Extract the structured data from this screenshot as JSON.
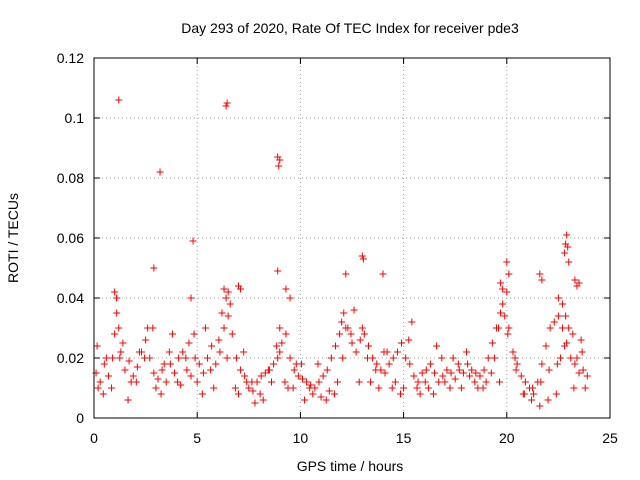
{
  "chart_data": {
    "type": "scatter",
    "title": "Day 293 of 2020, Rate Of TEC Index for receiver pde3",
    "xlabel": "GPS time / hours",
    "ylabel": "ROTI / TECUs",
    "xlim": [
      0,
      25
    ],
    "ylim": [
      0,
      0.12
    ],
    "xticks": [
      0,
      5,
      10,
      15,
      20,
      25
    ],
    "xtick_labels": [
      "0",
      "5",
      "10",
      "15",
      "20",
      "25"
    ],
    "yticks": [
      0,
      0.02,
      0.04,
      0.06,
      0.08,
      0.1,
      0.12
    ],
    "ytick_labels": [
      "0",
      "0.02",
      "0.04",
      "0.06",
      "0.08",
      "0.1",
      "0.12"
    ],
    "grid": true,
    "marker": "plus",
    "marker_color": "#ff0000",
    "series": [
      {
        "x": [
          0.1,
          0.3,
          0.5,
          0.7,
          0.9,
          1.0,
          1.1,
          1.2,
          1.3,
          1.5,
          1.7,
          1.9,
          2.1,
          2.3,
          2.5,
          2.7,
          2.9,
          3.1,
          3.3,
          3.5,
          3.7,
          3.9,
          4.1,
          4.3,
          4.5,
          4.7,
          4.9,
          5.1,
          5.3,
          5.5,
          5.7,
          5.9,
          6.1,
          6.3,
          6.5,
          6.7,
          6.9,
          7.1,
          7.3,
          7.5,
          7.7,
          7.9,
          8.1,
          8.3,
          8.5,
          8.7,
          8.9,
          9.0,
          9.1,
          9.3,
          9.5,
          9.7,
          9.9,
          10.1,
          10.3,
          10.5,
          10.7,
          10.9,
          11.1,
          11.3,
          11.5,
          11.7,
          11.9,
          12.0,
          12.1,
          12.3,
          12.5,
          12.7,
          12.9,
          13.1,
          13.3,
          13.5,
          13.7,
          13.9,
          14.1,
          14.3,
          14.5,
          14.7,
          14.9,
          15.1,
          15.3,
          15.5,
          15.7,
          15.9,
          16.1,
          16.3,
          16.5,
          16.7,
          16.9,
          17.1,
          17.3,
          17.5,
          17.7,
          17.9,
          18.1,
          18.3,
          18.5,
          18.7,
          18.9,
          19.1,
          19.3,
          19.5,
          19.7,
          19.8,
          19.9,
          20.1,
          20.3,
          20.5,
          20.7,
          20.9,
          21.1,
          21.3,
          21.5,
          21.7,
          21.9,
          22.1,
          22.3,
          22.5,
          22.7,
          22.9,
          23.1,
          23.3,
          23.5,
          23.7,
          23.9,
          0.2,
          0.6,
          1.1,
          1.4,
          1.8,
          2.2,
          2.6,
          3.0,
          3.4,
          3.8,
          4.2,
          4.6,
          5.0,
          5.4,
          5.8,
          6.2,
          6.4,
          6.6,
          7.0,
          7.4,
          7.8,
          8.2,
          8.6,
          9.0,
          9.4,
          9.8,
          10.2,
          10.6,
          11.0,
          11.4,
          11.8,
          12.2,
          12.6,
          13.0,
          13.4,
          13.8,
          14.2,
          14.6,
          15.0,
          15.4,
          15.8,
          16.2,
          16.6,
          17.0,
          17.4,
          17.8,
          18.2,
          18.6,
          19.0,
          19.4,
          19.6,
          20.0,
          20.4,
          20.8,
          21.2,
          21.6,
          22.0,
          22.4,
          22.6,
          22.8,
          23.0,
          23.2,
          23.4,
          23.6,
          23.8,
          0.15,
          0.45,
          0.85,
          1.25,
          1.65,
          2.05,
          2.45,
          2.85,
          3.25,
          3.65,
          4.05,
          4.45,
          4.85,
          5.25,
          5.65,
          6.05,
          6.45,
          6.85,
          7.25,
          7.65,
          8.05,
          8.45,
          8.85,
          9.25,
          9.65,
          10.05,
          10.45,
          10.85,
          11.25,
          11.65,
          12.05,
          12.45,
          12.85,
          13.25,
          13.65,
          14.05,
          14.45,
          14.85,
          15.25,
          15.65,
          16.05,
          16.45,
          16.85,
          17.25,
          17.65,
          18.05,
          18.45,
          18.85,
          19.25,
          19.65,
          20.05,
          20.45,
          20.85,
          21.25,
          21.65,
          22.05,
          22.45,
          22.85,
          23.25,
          23.65,
          1.2,
          3.2,
          2.9,
          4.8,
          4.7,
          6.4,
          6.45,
          8.9,
          8.95,
          9.0,
          13.0,
          13.05,
          14.0,
          20.0,
          21.6,
          21.7,
          22.8,
          22.85,
          22.9,
          22.95,
          23.0,
          23.3,
          23.5,
          8.9,
          9.3,
          9.5,
          12.2,
          1.0,
          1.1,
          6.3,
          6.5,
          7.0,
          7.1,
          19.7,
          19.8,
          20.1,
          23.4,
          22.5,
          22.7
        ],
        "y": [
          0.015,
          0.012,
          0.018,
          0.014,
          0.02,
          0.028,
          0.035,
          0.03,
          0.022,
          0.016,
          0.019,
          0.014,
          0.017,
          0.022,
          0.026,
          0.02,
          0.015,
          0.013,
          0.016,
          0.012,
          0.018,
          0.015,
          0.02,
          0.022,
          0.016,
          0.014,
          0.02,
          0.018,
          0.015,
          0.02,
          0.024,
          0.018,
          0.022,
          0.03,
          0.034,
          0.028,
          0.02,
          0.016,
          0.014,
          0.01,
          0.009,
          0.012,
          0.014,
          0.015,
          0.016,
          0.018,
          0.02,
          0.022,
          0.025,
          0.028,
          0.02,
          0.016,
          0.014,
          0.013,
          0.012,
          0.011,
          0.01,
          0.012,
          0.014,
          0.016,
          0.02,
          0.024,
          0.028,
          0.032,
          0.035,
          0.03,
          0.025,
          0.022,
          0.026,
          0.028,
          0.024,
          0.02,
          0.018,
          0.016,
          0.015,
          0.018,
          0.02,
          0.022,
          0.025,
          0.02,
          0.018,
          0.014,
          0.012,
          0.015,
          0.016,
          0.018,
          0.015,
          0.012,
          0.014,
          0.016,
          0.015,
          0.013,
          0.016,
          0.015,
          0.018,
          0.016,
          0.015,
          0.014,
          0.016,
          0.02,
          0.025,
          0.03,
          0.035,
          0.038,
          0.034,
          0.03,
          0.022,
          0.018,
          0.014,
          0.012,
          0.01,
          0.008,
          0.012,
          0.018,
          0.024,
          0.03,
          0.032,
          0.034,
          0.03,
          0.025,
          0.02,
          0.018,
          0.015,
          0.016,
          0.014,
          0.01,
          0.02,
          0.04,
          0.025,
          0.012,
          0.022,
          0.03,
          0.01,
          0.018,
          0.028,
          0.011,
          0.025,
          0.012,
          0.03,
          0.01,
          0.035,
          0.04,
          0.038,
          0.008,
          0.012,
          0.005,
          0.006,
          0.012,
          0.03,
          0.01,
          0.018,
          0.006,
          0.008,
          0.007,
          0.009,
          0.012,
          0.03,
          0.036,
          0.03,
          0.012,
          0.01,
          0.022,
          0.012,
          0.01,
          0.032,
          0.008,
          0.01,
          0.024,
          0.012,
          0.02,
          0.01,
          0.014,
          0.01,
          0.012,
          0.02,
          0.03,
          0.042,
          0.02,
          0.008,
          0.006,
          0.004,
          0.006,
          0.008,
          0.02,
          0.024,
          0.03,
          0.028,
          0.02,
          0.026,
          0.01,
          0.024,
          0.008,
          0.01,
          0.02,
          0.006,
          0.012,
          0.02,
          0.03,
          0.008,
          0.022,
          0.012,
          0.02,
          0.028,
          0.008,
          0.016,
          0.026,
          0.02,
          0.01,
          0.022,
          0.012,
          0.008,
          0.016,
          0.024,
          0.012,
          0.01,
          0.018,
          0.01,
          0.018,
          0.006,
          0.008,
          0.02,
          0.028,
          0.012,
          0.02,
          0.016,
          0.022,
          0.01,
          0.008,
          0.026,
          0.01,
          0.012,
          0.008,
          0.02,
          0.01,
          0.018,
          0.022,
          0.012,
          0.01,
          0.015,
          0.012,
          0.028,
          0.016,
          0.008,
          0.01,
          0.012,
          0.016,
          0.018,
          0.034,
          0.01,
          0.022,
          0.106,
          0.082,
          0.05,
          0.059,
          0.04,
          0.104,
          0.105,
          0.087,
          0.084,
          0.086,
          0.054,
          0.053,
          0.048,
          0.052,
          0.048,
          0.046,
          0.055,
          0.058,
          0.061,
          0.057,
          0.052,
          0.046,
          0.045,
          0.049,
          0.043,
          0.04,
          0.048,
          0.042,
          0.04,
          0.043,
          0.042,
          0.044,
          0.043,
          0.045,
          0.043,
          0.048,
          0.044,
          0.04,
          0.038
        ]
      }
    ]
  }
}
